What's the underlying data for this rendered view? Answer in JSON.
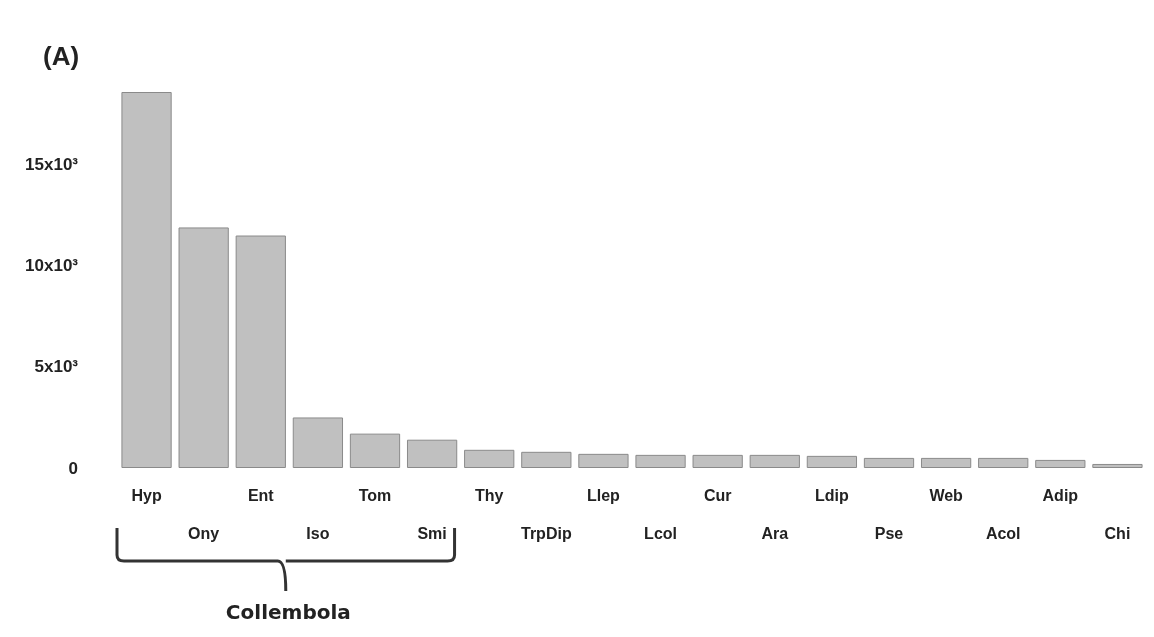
{
  "chart_data": {
    "type": "bar",
    "title": "(A)",
    "categories": [
      "Hyp",
      "Ony",
      "Ent",
      "Iso",
      "Tom",
      "Smi",
      "Thy",
      "TrpDip",
      "Llep",
      "Lcol",
      "Cur",
      "Ara",
      "Ldip",
      "Pse",
      "Web",
      "Acol",
      "Adip",
      "Chi"
    ],
    "values": [
      18600,
      11900,
      11500,
      2500,
      1700,
      1400,
      900,
      800,
      700,
      650,
      650,
      650,
      600,
      500,
      500,
      500,
      400,
      200
    ],
    "color": "#c0c0c0",
    "ylim": [
      0,
      18600
    ],
    "yticks": [
      {
        "value": 0,
        "label": "0"
      },
      {
        "value": 5000,
        "label": "5x10³"
      },
      {
        "value": 10000,
        "label": "10x10³"
      },
      {
        "value": 15000,
        "label": "15x10³"
      }
    ],
    "grid": false,
    "annotations": [
      "Collembola"
    ]
  }
}
